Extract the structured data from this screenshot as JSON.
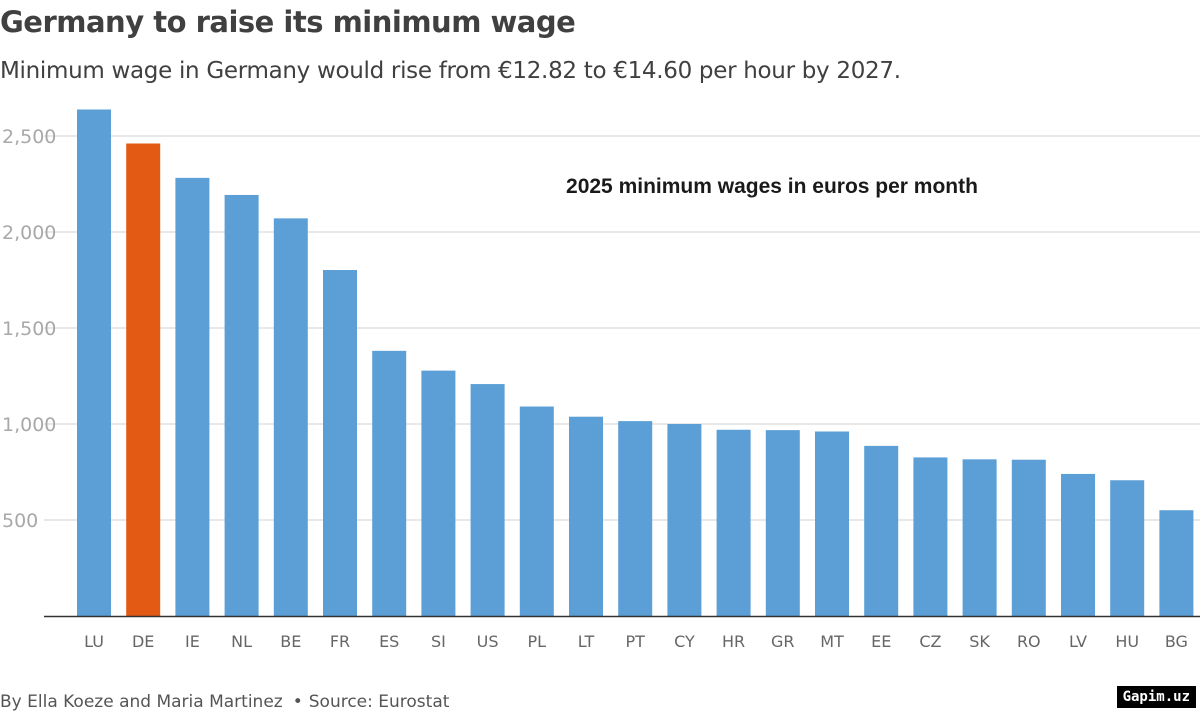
{
  "title": "Germany to raise its minimum wage",
  "subtitle": "Minimum wage in Germany would rise from €12.82 to €14.60 per hour by 2027.",
  "byline": {
    "authors": "By Ella Koeze and Maria Martinez",
    "separator": "•",
    "source": "Source: Eurostat"
  },
  "watermark": "Gapim.uz",
  "colors": {
    "default_bar": "#5b9fd6",
    "highlight_bar": "#e25a14",
    "gridline": "#d0d0d0",
    "axis": "#333333",
    "tick_label": "#a8a8a8",
    "category_label": "#666666"
  },
  "chart_data": {
    "type": "bar",
    "title": "2025 minimum wages in euros per month",
    "xlabel": "",
    "ylabel": "",
    "categories": [
      "LU",
      "DE",
      "IE",
      "NL",
      "BE",
      "FR",
      "ES",
      "SI",
      "US",
      "PL",
      "LT",
      "PT",
      "CY",
      "HR",
      "GR",
      "MT",
      "EE",
      "CZ",
      "SK",
      "RO",
      "LV",
      "HU",
      "BG"
    ],
    "values": [
      2638,
      2461,
      2282,
      2193,
      2071,
      1802,
      1381,
      1278,
      1208,
      1091,
      1038,
      1015,
      1000,
      970,
      968,
      961,
      886,
      826,
      816,
      814,
      740,
      707,
      551
    ],
    "highlight": "DE",
    "ylim": [
      0,
      2640
    ],
    "yticks": [
      500,
      1000,
      1500,
      2000,
      2500
    ],
    "ytick_labels": [
      "500",
      "1,000",
      "1,500",
      "2,000",
      "2,500"
    ],
    "grid": true,
    "legend": "none"
  }
}
